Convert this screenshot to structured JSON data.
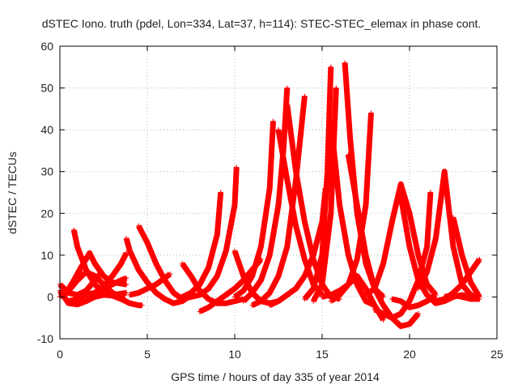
{
  "chart_data": {
    "type": "scatter",
    "title": "dSTEC Iono. truth (pdel, Lon=334, Lat=37, h=114): STEC-STEC_elemax in phase cont.",
    "xlabel": "GPS time / hours of day 335 of year 2014",
    "ylabel": "dSTEC  / TECUs",
    "xlim": [
      0,
      25
    ],
    "ylim": [
      -10,
      60
    ],
    "xticks": [
      0,
      5,
      10,
      15,
      20,
      25
    ],
    "yticks": [
      -10,
      0,
      10,
      20,
      30,
      40,
      50,
      60
    ],
    "grid": true,
    "marker": "+",
    "color": "#ff0000",
    "series": [
      {
        "x": [
          0.0,
          0.5,
          1.0,
          1.5,
          2.0,
          2.5,
          3.0,
          3.5,
          4.0,
          4.5,
          4.7
        ],
        "y": [
          1.5,
          -1.5,
          -1.8,
          -1.0,
          0.0,
          0.5,
          0.3,
          -0.5,
          -1.5,
          -2.0,
          -2.0
        ]
      },
      {
        "x": [
          0.0,
          0.5,
          1.0,
          1.5,
          2.0,
          2.4
        ],
        "y": [
          3.0,
          1.0,
          0.5,
          1.5,
          4.0,
          6.0
        ]
      },
      {
        "x": [
          0.0,
          0.5,
          1.0,
          1.5,
          2.0,
          2.5,
          3.0,
          3.7
        ],
        "y": [
          0.0,
          1.5,
          4.0,
          6.0,
          5.0,
          3.0,
          1.0,
          -0.5
        ]
      },
      {
        "x": [
          0.8,
          1.0,
          1.5,
          2.0,
          2.5,
          3.0,
          3.5,
          3.8
        ],
        "y": [
          16.0,
          12.0,
          6.5,
          3.0,
          1.0,
          0.5,
          0.8,
          1.0
        ]
      },
      {
        "x": [
          0.3,
          0.8,
          1.2,
          1.7,
          2.0,
          2.5,
          3.0,
          3.5,
          3.8
        ],
        "y": [
          0.5,
          4.0,
          7.0,
          10.5,
          8.0,
          5.0,
          3.5,
          3.2,
          3.0
        ]
      },
      {
        "x": [
          0.5,
          1.0,
          1.5,
          2.0,
          2.5,
          3.0,
          3.5,
          3.8
        ],
        "y": [
          -1.0,
          -0.5,
          0.5,
          1.0,
          2.0,
          3.0,
          4.0,
          4.5
        ]
      },
      {
        "x": [
          1.5,
          2.0,
          2.5,
          3.0,
          3.5,
          3.8
        ],
        "y": [
          0.5,
          1.0,
          2.5,
          5.0,
          8.0,
          10.5
        ]
      },
      {
        "x": [
          3.8,
          4.0,
          4.5,
          5.0,
          5.5,
          6.0,
          6.5,
          7.0,
          7.5
        ],
        "y": [
          14.0,
          11.0,
          6.5,
          3.5,
          1.0,
          -0.5,
          -1.5,
          -1.0,
          0.5
        ]
      },
      {
        "x": [
          4.5,
          5.0,
          5.5,
          6.0,
          6.5,
          7.0,
          7.5,
          8.0
        ],
        "y": [
          17.0,
          13.0,
          8.0,
          4.0,
          1.0,
          -0.5,
          0.0,
          0.5
        ]
      },
      {
        "x": [
          4.0,
          4.5,
          5.0,
          5.5,
          6.0,
          6.3
        ],
        "y": [
          0.5,
          1.0,
          2.0,
          3.0,
          4.5,
          5.5
        ]
      },
      {
        "x": [
          7.0,
          7.5,
          8.0,
          8.5,
          9.0,
          9.5,
          10.0,
          10.5
        ],
        "y": [
          8.0,
          5.0,
          1.5,
          -0.5,
          -1.5,
          -1.5,
          -1.0,
          -0.5
        ]
      },
      {
        "x": [
          7.0,
          7.5,
          8.0,
          8.5,
          9.0,
          9.2
        ],
        "y": [
          0.0,
          1.0,
          3.0,
          7.0,
          15.0,
          25.0
        ]
      },
      {
        "x": [
          7.5,
          8.0,
          8.5,
          9.0,
          9.5,
          10.0,
          10.1
        ],
        "y": [
          0.0,
          0.5,
          2.0,
          5.0,
          11.0,
          22.0,
          31.0
        ]
      },
      {
        "x": [
          8.0,
          8.5,
          9.0,
          9.5,
          10.0,
          10.5,
          11.0,
          11.5
        ],
        "y": [
          -3.5,
          -2.5,
          -1.0,
          0.5,
          2.0,
          4.0,
          6.5,
          9.0
        ]
      },
      {
        "x": [
          10.0,
          10.5,
          11.0,
          11.5,
          12.0,
          12.5
        ],
        "y": [
          11.0,
          5.0,
          1.0,
          -1.0,
          -1.5,
          -1.0
        ]
      },
      {
        "x": [
          10.0,
          10.5,
          11.0,
          11.5,
          12.0,
          12.2
        ],
        "y": [
          0.0,
          1.5,
          5.0,
          12.0,
          26.0,
          42.0
        ]
      },
      {
        "x": [
          10.5,
          11.0,
          11.5,
          12.0,
          12.5,
          12.8,
          13.0
        ],
        "y": [
          -1.0,
          1.0,
          4.0,
          10.0,
          22.0,
          36.0,
          50.0
        ]
      },
      {
        "x": [
          11.0,
          11.5,
          12.0,
          12.5,
          13.0,
          13.5,
          14.0
        ],
        "y": [
          -2.0,
          -1.0,
          1.0,
          5.0,
          12.0,
          28.0,
          48.0
        ]
      },
      {
        "x": [
          12.5,
          13.0,
          13.5,
          14.0,
          14.5,
          15.0
        ],
        "y": [
          40.0,
          28.0,
          17.0,
          9.0,
          3.0,
          0.5
        ]
      },
      {
        "x": [
          13.0,
          13.5,
          14.0,
          14.5,
          15.0,
          15.5,
          16.0
        ],
        "y": [
          46.0,
          30.0,
          18.0,
          9.0,
          3.0,
          0.0,
          -0.5
        ]
      },
      {
        "x": [
          12.0,
          12.5,
          13.0,
          13.5,
          14.0,
          14.5,
          15.0,
          15.2
        ],
        "y": [
          -2.0,
          -1.0,
          0.5,
          2.0,
          5.0,
          10.0,
          18.0,
          26.0
        ]
      },
      {
        "x": [
          14.0,
          14.5,
          15.0,
          15.3,
          15.5
        ],
        "y": [
          -0.5,
          2.0,
          10.0,
          30.0,
          55.0
        ]
      },
      {
        "x": [
          14.5,
          15.0,
          15.5,
          15.8
        ],
        "y": [
          -1.0,
          3.0,
          20.0,
          50.0
        ]
      },
      {
        "x": [
          15.5,
          16.0,
          16.5,
          17.0,
          17.5,
          18.0
        ],
        "y": [
          42.0,
          22.0,
          10.0,
          3.0,
          -1.0,
          -2.0
        ]
      },
      {
        "x": [
          16.3,
          16.6,
          17.0,
          17.5,
          18.0,
          18.5
        ],
        "y": [
          56.0,
          38.0,
          20.0,
          8.0,
          2.0,
          0.0
        ]
      },
      {
        "x": [
          15.5,
          16.0,
          16.5,
          17.0,
          17.5,
          17.8
        ],
        "y": [
          -1.0,
          0.5,
          3.0,
          9.0,
          22.0,
          44.0
        ]
      },
      {
        "x": [
          16.5,
          17.0,
          17.5,
          18.0,
          18.5,
          19.0,
          19.5,
          20.0,
          20.5
        ],
        "y": [
          34.0,
          22.0,
          10.0,
          2.0,
          -2.0,
          -5.0,
          -7.0,
          -6.5,
          -4.0
        ]
      },
      {
        "x": [
          15.0,
          15.5,
          16.0,
          16.5,
          17.0,
          17.5,
          18.0,
          18.5
        ],
        "y": [
          0.0,
          0.5,
          1.5,
          3.0,
          5.0,
          2.0,
          -2.0,
          -5.5
        ]
      },
      {
        "x": [
          17.5,
          18.0,
          18.5,
          19.0,
          19.5,
          20.0,
          20.5,
          21.0,
          21.5
        ],
        "y": [
          0.5,
          2.0,
          8.0,
          18.0,
          27.0,
          20.0,
          10.0,
          3.0,
          0.5
        ]
      },
      {
        "x": [
          18.0,
          18.5,
          19.0,
          19.5,
          20.0,
          20.5,
          21.0,
          21.2
        ],
        "y": [
          -3.0,
          -4.0,
          -5.0,
          -4.0,
          -1.0,
          4.0,
          12.0,
          25.0
        ]
      },
      {
        "x": [
          19.5,
          20.0,
          20.5,
          21.0,
          21.5,
          22.0,
          22.5,
          23.0,
          23.5
        ],
        "y": [
          24.0,
          12.0,
          4.0,
          0.5,
          -1.5,
          -1.0,
          0.0,
          0.5,
          0.0
        ]
      },
      {
        "x": [
          19.0,
          19.5,
          20.0,
          20.5,
          21.0,
          21.5
        ],
        "y": [
          -0.5,
          -1.0,
          -2.5,
          -2.0,
          -1.0,
          0.5
        ]
      },
      {
        "x": [
          20.5,
          21.0,
          21.5,
          22.0,
          22.5,
          23.0,
          23.5,
          24.0
        ],
        "y": [
          2.0,
          6.0,
          14.0,
          30.0,
          12.0,
          3.0,
          0.5,
          0.0
        ]
      },
      {
        "x": [
          21.5,
          22.0,
          22.5,
          23.0,
          23.5,
          24.0
        ],
        "y": [
          -1.0,
          -0.5,
          1.0,
          3.0,
          6.0,
          9.0
        ]
      },
      {
        "x": [
          22.5,
          23.0,
          23.5,
          24.0
        ],
        "y": [
          19.0,
          10.0,
          3.5,
          0.0
        ]
      },
      {
        "x": [
          22.0,
          22.5,
          23.0,
          23.5,
          24.0
        ],
        "y": [
          0.0,
          0.5,
          0.0,
          -0.5,
          -0.5
        ]
      }
    ]
  }
}
